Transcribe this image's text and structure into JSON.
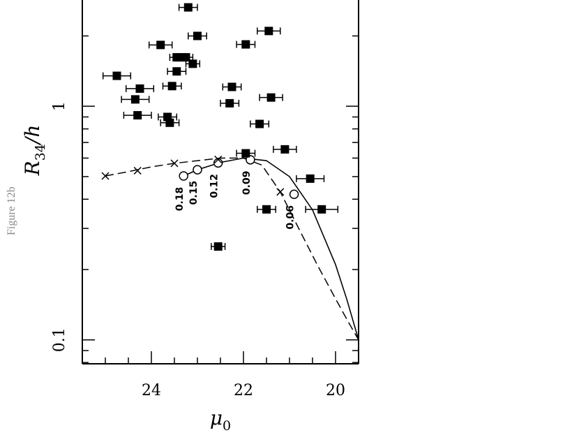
{
  "figure_label": "Figure 12b",
  "chart_data": {
    "type": "scatter",
    "xlabel": {
      "main": "μ",
      "sub": "0"
    },
    "ylabel": {
      "main": "R",
      "sub": "34",
      "tail": "/h"
    },
    "x_reversed": true,
    "xlim": [
      25.5,
      19.5
    ],
    "ylim_log": [
      0.079,
      2.85
    ],
    "y_scale": "log",
    "x_ticks": [
      {
        "value": 24,
        "label": "24"
      },
      {
        "value": 22,
        "label": "22"
      },
      {
        "value": 20,
        "label": "20"
      }
    ],
    "y_ticks": [
      {
        "value": 1,
        "label": "1"
      },
      {
        "value": 0.1,
        "label": "0.1"
      }
    ],
    "points": [
      {
        "x": 23.2,
        "y": 2.65,
        "xerr": 0.2
      },
      {
        "x": 23.0,
        "y": 2.0,
        "xerr": 0.2
      },
      {
        "x": 21.45,
        "y": 2.1,
        "xerr": 0.25
      },
      {
        "x": 23.8,
        "y": 1.83,
        "xerr": 0.25
      },
      {
        "x": 21.95,
        "y": 1.84,
        "xerr": 0.2
      },
      {
        "x": 23.45,
        "y": 1.62,
        "xerr": 0.15
      },
      {
        "x": 23.35,
        "y": 1.62,
        "xerr": 0.15
      },
      {
        "x": 23.25,
        "y": 1.62,
        "xerr": 0.15
      },
      {
        "x": 23.1,
        "y": 1.52,
        "xerr": 0.15
      },
      {
        "x": 23.45,
        "y": 1.41,
        "xerr": 0.2
      },
      {
        "x": 24.75,
        "y": 1.35,
        "xerr": 0.3
      },
      {
        "x": 24.25,
        "y": 1.19,
        "xerr": 0.3
      },
      {
        "x": 23.55,
        "y": 1.22,
        "xerr": 0.2
      },
      {
        "x": 22.25,
        "y": 1.21,
        "xerr": 0.2
      },
      {
        "x": 21.4,
        "y": 1.09,
        "xerr": 0.25
      },
      {
        "x": 24.35,
        "y": 1.07,
        "xerr": 0.3
      },
      {
        "x": 22.3,
        "y": 1.03,
        "xerr": 0.2
      },
      {
        "x": 24.3,
        "y": 0.915,
        "xerr": 0.3
      },
      {
        "x": 23.65,
        "y": 0.9,
        "xerr": 0.2
      },
      {
        "x": 23.6,
        "y": 0.85,
        "xerr": 0.2
      },
      {
        "x": 21.65,
        "y": 0.84,
        "xerr": 0.2
      },
      {
        "x": 21.1,
        "y": 0.654,
        "xerr": 0.25
      },
      {
        "x": 21.95,
        "y": 0.629,
        "xerr": 0.2
      },
      {
        "x": 20.55,
        "y": 0.49,
        "xerr": 0.3
      },
      {
        "x": 21.5,
        "y": 0.362,
        "xerr": 0.2
      },
      {
        "x": 20.3,
        "y": 0.362,
        "xerr": 0.35
      },
      {
        "x": 22.55,
        "y": 0.251,
        "xerr": 0.15
      }
    ],
    "solid_curve": [
      {
        "x": 23.3,
        "y": 0.503
      },
      {
        "x": 23.0,
        "y": 0.535
      },
      {
        "x": 22.5,
        "y": 0.575
      },
      {
        "x": 22.0,
        "y": 0.6
      },
      {
        "x": 21.5,
        "y": 0.585
      },
      {
        "x": 21.0,
        "y": 0.5
      },
      {
        "x": 20.5,
        "y": 0.36
      },
      {
        "x": 20.0,
        "y": 0.21
      },
      {
        "x": 19.75,
        "y": 0.148
      },
      {
        "x": 19.5,
        "y": 0.1
      }
    ],
    "circles": [
      {
        "x": 23.3,
        "y": 0.503,
        "label": "0.18"
      },
      {
        "x": 23.0,
        "y": 0.535,
        "label": "0.15"
      },
      {
        "x": 22.55,
        "y": 0.572,
        "label": "0.12"
      },
      {
        "x": 21.85,
        "y": 0.59,
        "label": "0.09"
      },
      {
        "x": 20.9,
        "y": 0.42,
        "label": "0.06"
      }
    ],
    "dashed_curve": [
      {
        "x": 25.0,
        "y": 0.503
      },
      {
        "x": 24.5,
        "y": 0.525
      },
      {
        "x": 24.0,
        "y": 0.55
      },
      {
        "x": 23.5,
        "y": 0.57
      },
      {
        "x": 23.0,
        "y": 0.585
      },
      {
        "x": 22.5,
        "y": 0.6
      },
      {
        "x": 22.0,
        "y": 0.6
      },
      {
        "x": 21.6,
        "y": 0.56
      },
      {
        "x": 21.2,
        "y": 0.43
      },
      {
        "x": 20.8,
        "y": 0.3
      },
      {
        "x": 20.4,
        "y": 0.21
      },
      {
        "x": 20.0,
        "y": 0.15
      },
      {
        "x": 19.75,
        "y": 0.122
      },
      {
        "x": 19.5,
        "y": 0.1
      }
    ],
    "crosses": [
      {
        "x": 25.0,
        "y": 0.503
      },
      {
        "x": 24.3,
        "y": 0.53
      },
      {
        "x": 23.5,
        "y": 0.57
      },
      {
        "x": 22.55,
        "y": 0.592
      },
      {
        "x": 21.2,
        "y": 0.43
      }
    ]
  }
}
